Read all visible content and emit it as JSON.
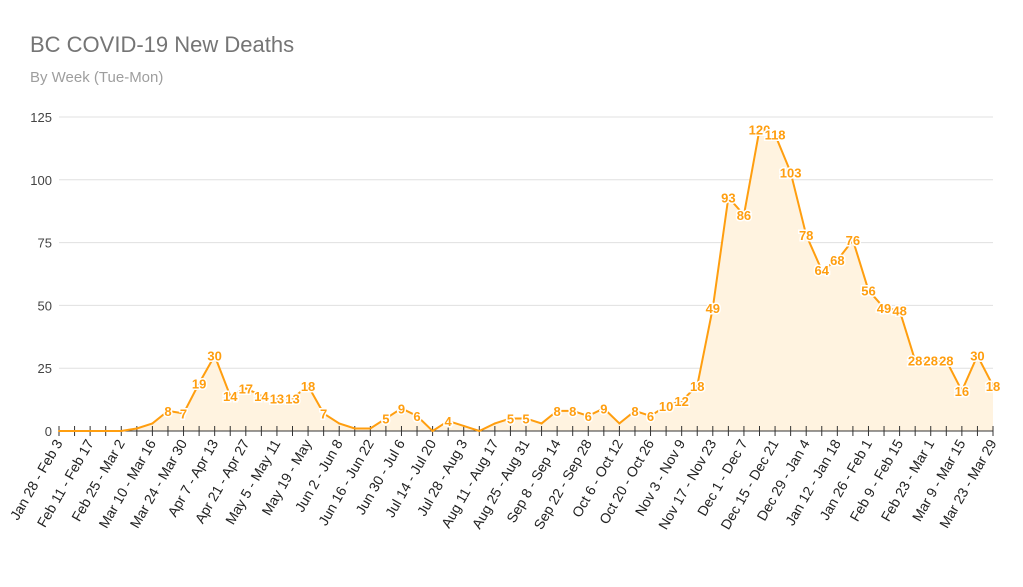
{
  "chart_data": {
    "type": "area",
    "title": "BC COVID-19 New Deaths",
    "subtitle": "By Week (Tue-Mon)",
    "xlabel": "",
    "ylabel": "",
    "ylim": [
      0,
      125
    ],
    "yticks": [
      0,
      25,
      50,
      75,
      100,
      125
    ],
    "grid": true,
    "colors": {
      "line": "#ff9e0f",
      "fill": "#fff3e0",
      "label": "#ff9e0f",
      "grid": "#e0e0e0",
      "axis": "#333333"
    },
    "x_tick_labels": [
      "Jan 28 - Feb 3",
      "Feb 11 - Feb 17",
      "Feb 25 - Mar 2",
      "Mar 10 - Mar 16",
      "Mar 24 - Mar 30",
      "Apr 7 - Apr 13",
      "Apr 21 - Apr 27",
      "May 5 - May 11",
      "May 19 - May",
      "Jun 2 - Jun 8",
      "Jun 16 - Jun 22",
      "Jun 30 - Jul 6",
      "Jul 14 - Jul 20",
      "Jul 28 - Aug 3",
      "Aug 11 - Aug 17",
      "Aug 25 - Aug 31",
      "Sep 8 - Sep 14",
      "Sep 22 - Sep 28",
      "Oct 6 - Oct 12",
      "Oct 20 - Oct 26",
      "Nov 3 - Nov 9",
      "Nov 17 - Nov 23",
      "Dec 1 - Dec 7",
      "Dec 15 - Dec 21",
      "Dec 29 - Jan 4",
      "Jan 12 - Jan 18",
      "Jan 26 - Feb 1",
      "Feb 9 - Feb 15",
      "Feb 23 - Mar 1",
      "Mar 9 - Mar 15",
      "Mar 23 - Mar 29"
    ],
    "series": [
      {
        "name": "New Deaths",
        "values": [
          0,
          0,
          0,
          0,
          0,
          1,
          3,
          8,
          7,
          19,
          30,
          14,
          17,
          14,
          13,
          13,
          18,
          7,
          3,
          1,
          1,
          5,
          9,
          6,
          0,
          4,
          2,
          0,
          3,
          5,
          5,
          3,
          8,
          8,
          6,
          9,
          3,
          8,
          6,
          10,
          12,
          18,
          49,
          93,
          86,
          120,
          118,
          103,
          78,
          64,
          68,
          76,
          56,
          49,
          48,
          28,
          28,
          28,
          16,
          30,
          18
        ]
      }
    ]
  }
}
